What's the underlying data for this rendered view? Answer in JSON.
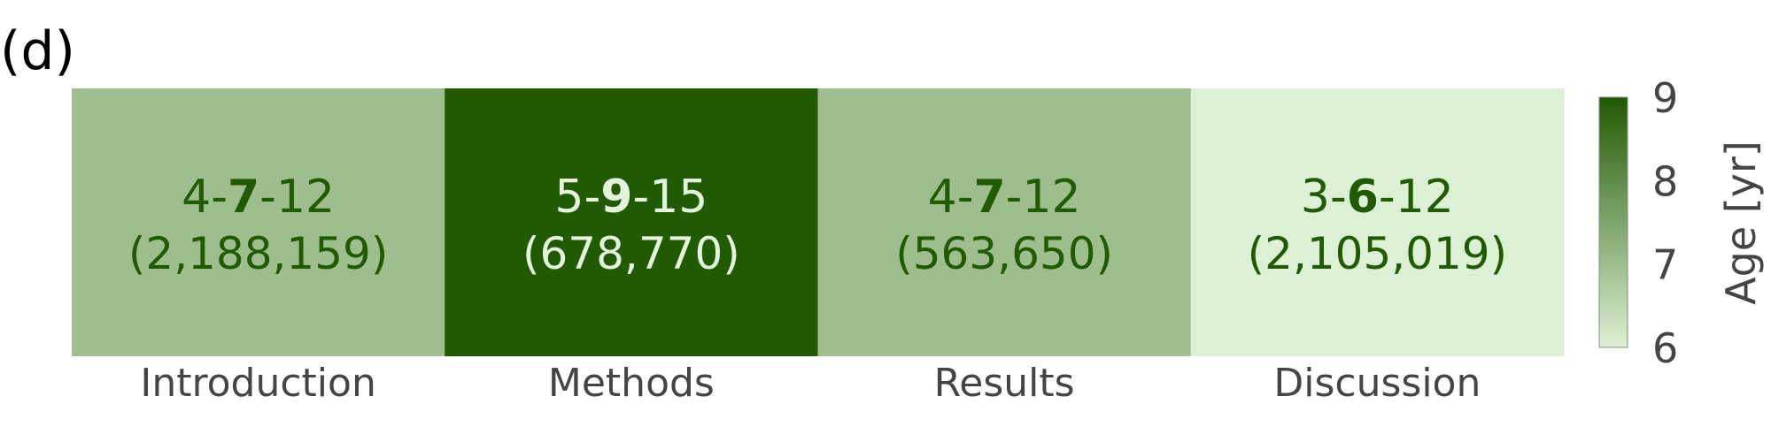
{
  "panel_label": "(d)",
  "chart_data": {
    "type": "heatmap",
    "categories": [
      "Introduction",
      "Methods",
      "Results",
      "Discussion"
    ],
    "cells": [
      {
        "category": "Introduction",
        "low": "4",
        "median": "7",
        "high": "12",
        "count": "(2,188,159)",
        "value": 7
      },
      {
        "category": "Methods",
        "low": "5",
        "median": "9",
        "high": "15",
        "count": "(678,770)",
        "value": 9
      },
      {
        "category": "Results",
        "low": "4",
        "median": "7",
        "high": "12",
        "count": "(563,650)",
        "value": 7
      },
      {
        "category": "Discussion",
        "low": "3",
        "median": "6",
        "high": "12",
        "count": "(2,105,019)",
        "value": 6
      }
    ],
    "colorbar": {
      "label": "Age [yr]",
      "min": 6,
      "max": 9,
      "ticks": [
        "6",
        "7",
        "8",
        "9"
      ],
      "color_low": "#dcf0d4",
      "color_high": "#225903"
    },
    "colors": {
      "text_dark": "#225903",
      "text_light": "#e3f4dc",
      "axis_text": "#444444"
    }
  }
}
